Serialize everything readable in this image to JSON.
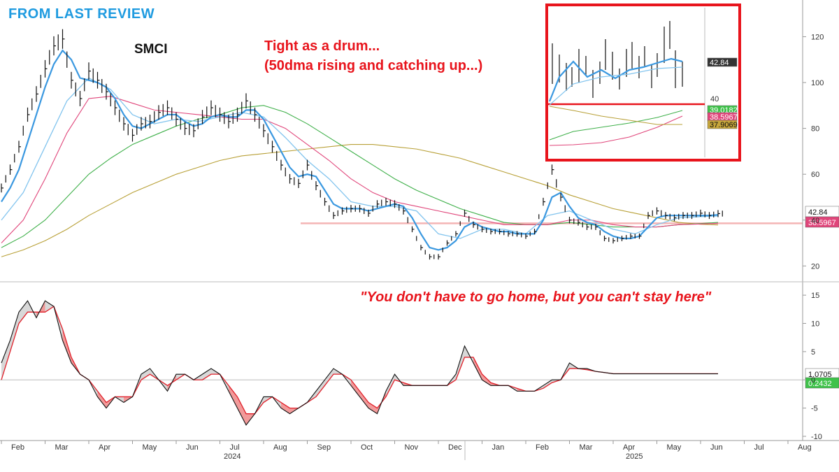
{
  "header": {
    "title": "FROM LAST REVIEW",
    "ticker": "SMCI"
  },
  "annotations": {
    "line1": "Tight as a drum...",
    "line2": "(50dma rising and catching up...)",
    "quote": "\"You don't have to go home, but you can't stay here\""
  },
  "colors": {
    "title_blue": "#1f9be0",
    "annotation_red": "#e8141c",
    "ma5": "#3a98e0",
    "ma10": "#82c4ee",
    "ma20": "#e0457a",
    "ma50": "#3fb04a",
    "ma200": "#b8a037",
    "support_line": "#f4b4b4",
    "macd_line": "#111111",
    "signal_line": "#e0202a",
    "hist_fill_down": "#f29a9a",
    "hist_fill_up": "#d8d8d8"
  },
  "chart_data": {
    "type": "line",
    "ticker": "SMCI",
    "price_axis": {
      "ylim": [
        14,
        136
      ],
      "ticks": [
        20,
        40,
        60,
        80,
        100,
        120
      ]
    },
    "oscillator_axis": {
      "ylim": [
        -10.5,
        16.5
      ],
      "ticks": [
        15,
        10,
        5,
        0,
        -5,
        -10
      ]
    },
    "x_months": [
      "Feb",
      "Mar",
      "Apr",
      "May",
      "Jun",
      "Jul",
      "Aug",
      "Sep",
      "Oct",
      "Nov",
      "Dec",
      "Jan",
      "Feb",
      "Mar",
      "Apr",
      "May",
      "Jun",
      "Jul",
      "Aug"
    ],
    "x_years": [
      "2024",
      "2025"
    ],
    "x_range_months": [
      0,
      19
    ],
    "price_close": {
      "x": [
        0,
        0.2,
        0.4,
        0.6,
        0.8,
        1.0,
        1.2,
        1.4,
        1.6,
        1.8,
        2.0,
        2.2,
        2.4,
        2.6,
        2.8,
        3.0,
        3.2,
        3.4,
        3.6,
        3.8,
        4.0,
        4.2,
        4.4,
        4.6,
        4.8,
        5.0,
        5.2,
        5.4,
        5.6,
        5.8,
        6.0,
        6.2,
        6.4,
        6.6,
        6.8,
        7.0,
        7.2,
        7.4,
        7.6,
        7.8,
        8.0,
        8.2,
        8.4,
        8.6,
        8.8,
        9.0,
        9.2,
        9.4,
        9.6,
        9.8,
        10.0,
        10.2,
        10.4,
        10.6,
        10.8,
        11.0,
        11.2,
        11.4,
        11.6,
        11.8,
        12.0,
        12.2,
        12.4,
        12.6,
        12.8,
        13.0,
        13.2,
        13.4,
        13.6,
        13.8,
        14.0,
        14.2,
        14.4,
        14.6,
        14.8,
        15.0,
        15.2,
        15.4,
        15.6,
        15.8,
        16.0,
        16.2,
        16.4
      ],
      "y": [
        54,
        62,
        72,
        86,
        95,
        106,
        116,
        119,
        101,
        93,
        105,
        101,
        96,
        89,
        82,
        77,
        82,
        83,
        87,
        89,
        84,
        80,
        79,
        85,
        89,
        86,
        83,
        86,
        92,
        86,
        79,
        72,
        64,
        58,
        56,
        64,
        55,
        48,
        42,
        44,
        45,
        45,
        43,
        47,
        48,
        47,
        44,
        36,
        28,
        24,
        24,
        30,
        34,
        43,
        38,
        36,
        35,
        35,
        34,
        34,
        33,
        35,
        48,
        62,
        50,
        40,
        39,
        37,
        37,
        32,
        31,
        32,
        33,
        33,
        42,
        44,
        42,
        41,
        42,
        42,
        43,
        42,
        42.84
      ]
    },
    "price_ohlc_note": "bars shown around each close",
    "moving_averages": [
      {
        "x": [
          0,
          0.2,
          0.4,
          0.6,
          0.8,
          1.0,
          1.2,
          1.4,
          1.6,
          1.8,
          2.0,
          2.2,
          2.4,
          2.6,
          2.8,
          3.0,
          3.2,
          3.4,
          3.6,
          3.8,
          4.0,
          4.2,
          4.4,
          4.6,
          4.8,
          5.0,
          5.2,
          5.4,
          5.6,
          5.8,
          6.0,
          6.2,
          6.4,
          6.6,
          6.8,
          7.0,
          7.2,
          7.4,
          7.6,
          7.8,
          8.0,
          8.2,
          8.4,
          8.6,
          8.8,
          9.0,
          9.2,
          9.4,
          9.6,
          9.8,
          10.0,
          10.2,
          10.4,
          10.6,
          10.8,
          11.0,
          11.2,
          11.4,
          11.6,
          11.8,
          12.0,
          12.2,
          12.4,
          12.6,
          12.8,
          13.0,
          13.2,
          13.4,
          13.6,
          13.8,
          14.0,
          14.2,
          14.4,
          14.6,
          14.8,
          15.0,
          15.2,
          15.4,
          15.6,
          15.8,
          16.0,
          16.2,
          16.4
        ],
        "y": [
          48,
          54,
          62,
          74,
          86,
          98,
          108,
          114,
          110,
          102,
          101,
          100,
          98,
          93,
          86,
          81,
          80,
          82,
          84,
          86,
          86,
          83,
          81,
          82,
          85,
          86,
          85,
          85,
          88,
          88,
          84,
          77,
          70,
          63,
          59,
          60,
          59,
          53,
          47,
          45,
          45,
          45,
          44,
          45,
          46,
          47,
          46,
          41,
          34,
          28,
          27,
          28,
          31,
          37,
          39,
          37,
          36,
          35,
          35,
          34,
          34,
          34,
          40,
          50,
          52,
          46,
          41,
          39,
          38,
          35,
          33,
          32,
          32,
          33,
          37,
          41,
          42,
          42,
          42,
          42,
          42,
          42,
          42.3
        ]
      },
      {
        "x": [
          0,
          0.5,
          1.0,
          1.5,
          2.0,
          2.5,
          3.0,
          3.5,
          4.0,
          4.5,
          5.0,
          5.5,
          6.0,
          6.5,
          7.0,
          7.5,
          8.0,
          8.5,
          9.0,
          9.5,
          10.0,
          10.5,
          11.0,
          11.5,
          12.0,
          12.5,
          13.0,
          13.5,
          14.0,
          14.5,
          15.0,
          15.5,
          16.0,
          16.4
        ],
        "y": [
          40,
          52,
          72,
          92,
          102,
          97,
          86,
          82,
          84,
          83,
          85,
          87,
          85,
          76,
          66,
          58,
          48,
          46,
          46,
          44,
          34,
          32,
          36,
          36,
          34,
          42,
          44,
          40,
          36,
          34,
          38,
          41,
          41.5,
          41.8
        ]
      },
      {
        "x": [
          0,
          0.5,
          1.0,
          1.5,
          2.0,
          2.5,
          3.0,
          3.5,
          4.0,
          4.5,
          5.0,
          5.5,
          6.0,
          6.5,
          7.0,
          7.5,
          8.0,
          8.5,
          9.0,
          9.5,
          10.0,
          10.5,
          11.0,
          11.5,
          12.0,
          12.5,
          13.0,
          13.5,
          14.0,
          14.5,
          15.0,
          15.5,
          16.0,
          16.4
        ],
        "y": [
          30,
          40,
          58,
          78,
          93,
          94,
          91,
          88,
          87,
          86,
          85,
          84,
          84,
          80,
          73,
          66,
          58,
          52,
          48,
          46,
          44,
          42,
          40,
          38,
          38,
          38,
          40,
          40,
          38,
          37,
          37,
          38,
          38.3,
          38.6
        ]
      },
      {
        "x": [
          0,
          0.5,
          1.0,
          1.5,
          2.0,
          2.5,
          3.0,
          3.5,
          4.0,
          4.5,
          5.0,
          5.5,
          6.0,
          6.5,
          7.0,
          7.5,
          8.0,
          8.5,
          9.0,
          9.5,
          10.0,
          10.5,
          11.0,
          11.5,
          12.0,
          12.5,
          13.0,
          13.5,
          14.0,
          14.5,
          15.0,
          15.5,
          16.0,
          16.4
        ],
        "y": [
          28,
          33,
          40,
          50,
          60,
          67,
          73,
          77,
          81,
          84,
          86,
          89,
          90,
          87,
          82,
          76,
          70,
          64,
          58,
          53,
          49,
          45,
          42,
          39,
          38,
          38,
          39,
          38,
          37,
          37,
          37,
          38,
          38.5,
          39.0
        ]
      },
      {
        "x": [
          0,
          0.5,
          1.0,
          1.5,
          2.0,
          2.5,
          3.0,
          3.5,
          4.0,
          4.5,
          5.0,
          5.5,
          6.0,
          6.5,
          7.0,
          7.5,
          8.0,
          8.5,
          9.0,
          9.5,
          10.0,
          10.5,
          11.0,
          11.5,
          12.0,
          12.5,
          13.0,
          13.5,
          14.0,
          14.5,
          15.0,
          15.5,
          16.0,
          16.4
        ],
        "y": [
          24,
          27,
          31,
          36,
          42,
          47,
          52,
          56,
          60,
          63,
          66,
          68,
          69,
          70,
          71,
          72,
          73,
          73,
          72,
          71,
          69,
          67,
          64,
          61,
          58,
          55,
          51,
          48,
          45,
          43,
          41,
          39,
          38.2,
          37.9
        ]
      }
    ],
    "support_level": 38.5967,
    "price_labels": [
      "42.84",
      "38.5967"
    ],
    "oscillator": {
      "x": [
        0,
        0.2,
        0.4,
        0.6,
        0.8,
        1.0,
        1.2,
        1.4,
        1.6,
        1.8,
        2.0,
        2.2,
        2.4,
        2.6,
        2.8,
        3.0,
        3.2,
        3.4,
        3.6,
        3.8,
        4.0,
        4.2,
        4.4,
        4.6,
        4.8,
        5.0,
        5.2,
        5.4,
        5.6,
        5.8,
        6.0,
        6.2,
        6.4,
        6.6,
        6.8,
        7.0,
        7.2,
        7.4,
        7.6,
        7.8,
        8.0,
        8.2,
        8.4,
        8.6,
        8.8,
        9.0,
        9.2,
        9.4,
        9.6,
        9.8,
        10.0,
        10.2,
        10.4,
        10.6,
        10.8,
        11.0,
        11.2,
        11.4,
        11.6,
        11.8,
        12.0,
        12.2,
        12.4,
        12.6,
        12.8,
        13.0,
        13.2,
        13.4,
        13.6,
        13.8,
        14.0,
        14.2,
        14.4,
        14.6,
        14.8,
        15.0,
        15.2,
        15.4,
        15.6,
        15.8,
        16.0,
        16.2,
        16.4
      ],
      "macd": [
        3,
        7,
        12,
        14,
        11,
        14,
        13,
        7,
        3,
        1,
        0,
        -3,
        -5,
        -3,
        -4,
        -3,
        1,
        2,
        0,
        -2,
        1,
        1,
        0,
        1,
        2,
        1,
        -2,
        -5,
        -8,
        -6,
        -3,
        -3,
        -5,
        -6,
        -5,
        -4,
        -2,
        0,
        2,
        1,
        -1,
        -3,
        -5,
        -6,
        -2,
        1,
        -1,
        -1,
        -1,
        -1,
        -1,
        -1,
        1,
        6,
        3,
        0,
        -1,
        -1,
        -1,
        -2,
        -2,
        -2,
        -1,
        0,
        0,
        3,
        2,
        2,
        1.5,
        1.3,
        1.07,
        1.07,
        1.07,
        1.07,
        1.07,
        1.07,
        1.07,
        1.07,
        1.07,
        1.07,
        1.07,
        1.07,
        1.07
      ],
      "signal": [
        0,
        5,
        10,
        12,
        12,
        12,
        13,
        9,
        4,
        1,
        0,
        -2,
        -4,
        -3,
        -3,
        -3,
        0,
        1,
        0,
        -1,
        0,
        1,
        0,
        0,
        1,
        1,
        -1,
        -3,
        -6,
        -6,
        -4,
        -3,
        -4,
        -5,
        -5,
        -4,
        -3,
        -1,
        1,
        1,
        0,
        -2,
        -4,
        -5,
        -3,
        0,
        -0.5,
        -1,
        -1,
        -1,
        -1,
        -1,
        0,
        4,
        4,
        1,
        -0.5,
        -1,
        -1,
        -1.5,
        -2,
        -2,
        -1.5,
        -0.5,
        0,
        2,
        2,
        1.8,
        1.5,
        1.3,
        1.1,
        1.1,
        1.1,
        1.1,
        1.1,
        1.1,
        1.1,
        1.1,
        1.1,
        1.1,
        1.1,
        1.1,
        1.1
      ],
      "labels": [
        "1.0705",
        "0.2432"
      ]
    },
    "inset": {
      "description_level_label": "40",
      "labels": [
        "42.84",
        "39.0182",
        "38.5967",
        "37.9069"
      ]
    }
  }
}
